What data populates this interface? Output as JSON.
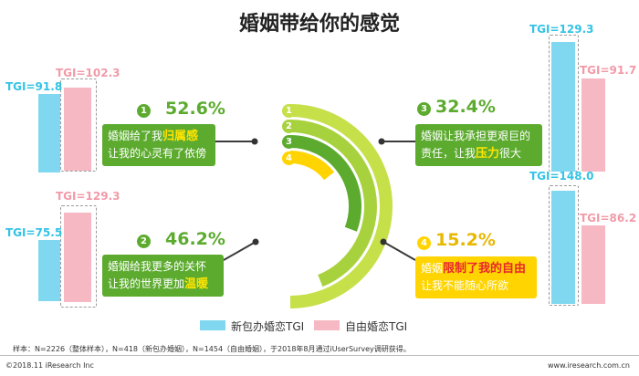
{
  "title": "婚姻带给你的感觉",
  "legend": [
    {
      "label": "新包办婚恋TGI",
      "color": "#7fd8ef"
    },
    {
      "label": "自由婚恋TGI",
      "color": "#f6b8c2"
    }
  ],
  "chart_data": {
    "type": "bar",
    "title": "婚姻带给你的感觉",
    "series": [
      {
        "name": "新包办婚恋TGI",
        "values": [
          91.8,
          75.5,
          129.3,
          148.0
        ]
      },
      {
        "name": "自由婚恋TGI",
        "values": [
          102.3,
          129.3,
          91.7,
          86.2
        ]
      }
    ],
    "categories": [
      "婚姻给了我归属感，让我的心灵有了依傍",
      "婚姻给我更多的关怀，让我的世界更加温暖",
      "婚姻让我承担更艰巨的责任，让我压力很大",
      "婚姻限制了我的自由，让我不能随心所欲"
    ],
    "percentages": [
      52.6,
      46.2,
      32.4,
      15.2
    ],
    "labels": {
      "tgi_new": [
        "TGI=91.8",
        "TGI=75.5",
        "TGI=129.3",
        "TGI=148.0"
      ],
      "tgi_free": [
        "TGI=102.3",
        "TGI=129.3",
        "TGI=91.7",
        "TGI=86.2"
      ],
      "pct": [
        "52.6%",
        "46.2%",
        "32.4%",
        "15.2%"
      ],
      "num": [
        "1",
        "2",
        "3",
        "4"
      ]
    }
  },
  "cards": [
    {
      "line1_pre": "婚姻给了我",
      "line1_hl": "归属感",
      "line1_post": "",
      "line2_pre": "让我的心灵有了依傍",
      "line2_hl": "",
      "line2_post": ""
    },
    {
      "line1_pre": "婚姻给我更多的关怀",
      "line1_hl": "",
      "line1_post": "",
      "line2_pre": "让我的世界更加",
      "line2_hl": "温暖",
      "line2_post": ""
    },
    {
      "line1_pre": "婚姻让我承担更艰巨的",
      "line1_hl": "",
      "line1_post": "",
      "line2_pre": "责任，让我",
      "line2_hl": "压力",
      "line2_post": "很大"
    },
    {
      "line1_pre": "婚姻",
      "line1_hl": "限制了我的自由",
      "line1_post": "",
      "line2_pre": "让我不能随心所欲",
      "line2_hl": "",
      "line2_post": ""
    }
  ],
  "footer": {
    "sample": "样本：N=2226（整体样本），N=418（新包办婚姻），N=1454（自由婚姻），于2018年8月通过iUserSurvey调研获得。",
    "copyright": "©2018.11 iResearch Inc",
    "url": "www.iresearch.com.cn"
  },
  "colors": {
    "green": "#5cab2f",
    "yellow": "#ffd400",
    "cyan": "#7fd8ef",
    "pink": "#f6b8c2",
    "ring_light": "#c6e04a",
    "ring_mid": "#8fc63a"
  }
}
